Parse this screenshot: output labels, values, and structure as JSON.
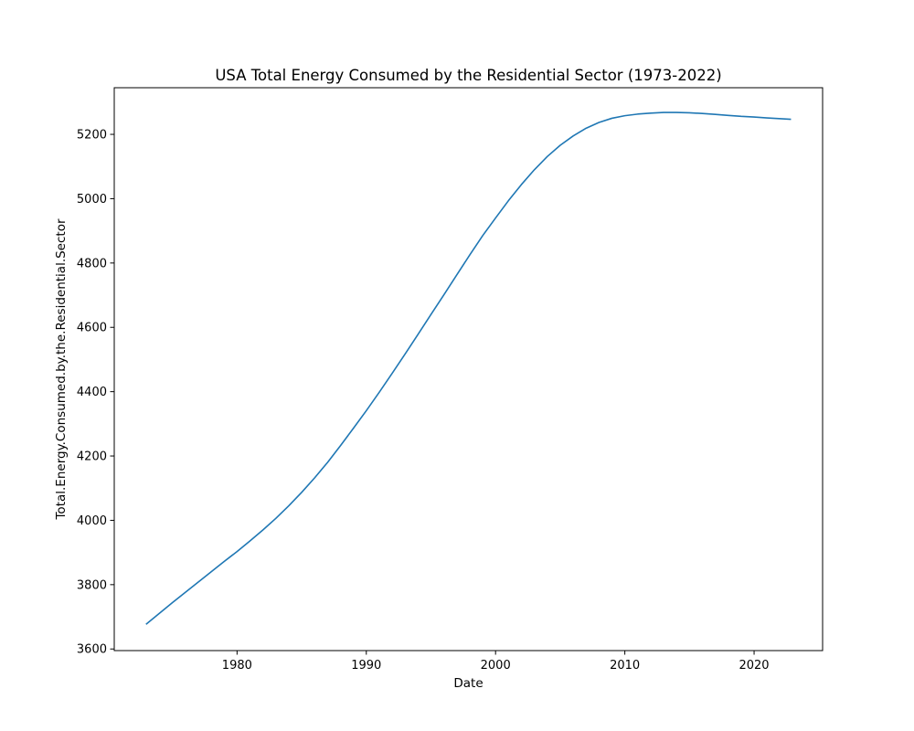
{
  "chart_data": {
    "type": "line",
    "title": "USA Total Energy Consumed by the Residential Sector (1973-2022)",
    "xlabel": "Date",
    "ylabel": "Total.Energy.Consumed.by.the.Residential.Sector",
    "xlim": [
      1970.5,
      2025.3
    ],
    "ylim": [
      3595,
      5345
    ],
    "xticks": [
      1980,
      1990,
      2000,
      2010,
      2020
    ],
    "yticks": [
      3600,
      3800,
      4000,
      4200,
      4400,
      4600,
      4800,
      5000,
      5200
    ],
    "grid": false,
    "line_color": "#1f77b4",
    "series": [
      {
        "x": [
          1973,
          1974,
          1975,
          1976,
          1977,
          1978,
          1979,
          1980,
          1981,
          1982,
          1983,
          1984,
          1985,
          1986,
          1987,
          1988,
          1989,
          1990,
          1991,
          1992,
          1993,
          1994,
          1995,
          1996,
          1997,
          1998,
          1999,
          2000,
          2001,
          2002,
          2003,
          2004,
          2005,
          2006,
          2007,
          2008,
          2009,
          2010,
          2011,
          2012,
          2013,
          2014,
          2015,
          2016,
          2017,
          2018,
          2019,
          2020,
          2021,
          2022.8
        ],
        "values": [
          3678,
          3711,
          3744,
          3776,
          3808,
          3840,
          3872,
          3903,
          3936,
          3970,
          4006,
          4045,
          4087,
          4132,
          4180,
          4232,
          4286,
          4341,
          4398,
          4457,
          4517,
          4578,
          4640,
          4701,
          4763,
          4825,
          4885,
          4940,
          4994,
          5044,
          5090,
          5131,
          5166,
          5195,
          5219,
          5237,
          5250,
          5258,
          5263,
          5266,
          5268,
          5268,
          5267,
          5265,
          5262,
          5259,
          5256,
          5254,
          5251,
          5247
        ]
      }
    ]
  }
}
